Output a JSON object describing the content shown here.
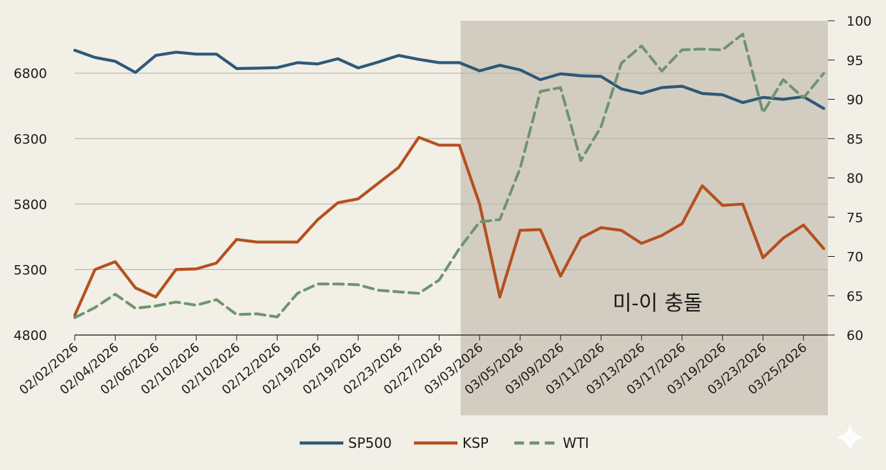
{
  "chart_data": {
    "type": "line",
    "title": "",
    "xlabel": "",
    "ylabel_left": "",
    "ylabel_right": "",
    "left_axis": {
      "min": 4800,
      "max": 7200,
      "ticks": [
        4800,
        5300,
        5800,
        6300,
        6800
      ]
    },
    "right_axis": {
      "min": 60,
      "max": 100,
      "ticks": [
        60,
        65,
        70,
        75,
        80,
        85,
        90,
        95,
        100
      ]
    },
    "x_tick_labels": [
      "02/02/2026",
      "02/04/2026",
      "02/06/2026",
      "02/10/2026",
      "02/10/2026",
      "02/12/2026",
      "02/19/2026",
      "02/19/2026",
      "02/23/2026",
      "02/27/2026",
      "03/03/2026",
      "03/05/2026",
      "03/09/2026",
      "03/11/2026",
      "03/13/2026",
      "03/17/2026",
      "03/19/2026",
      "03/23/2026",
      "03/25/2026"
    ],
    "points": 38,
    "shaded_region": {
      "from_index": 19,
      "to_index": 37,
      "label": "미-이 충돌"
    },
    "legend": [
      "SP500",
      "KSP",
      "WTI"
    ],
    "legend_position": "bottom-center",
    "series": [
      {
        "name": "SP500",
        "axis": "left",
        "color": "#2e5878",
        "style": "solid",
        "values": [
          6975,
          6920,
          6890,
          6805,
          6935,
          6960,
          6945,
          6945,
          6835,
          6838,
          6842,
          6880,
          6870,
          6910,
          6840,
          6885,
          6935,
          6905,
          6880,
          6880,
          6818,
          6860,
          6825,
          6750,
          6795,
          6780,
          6775,
          6680,
          6645,
          6690,
          6700,
          6645,
          6635,
          6575,
          6615,
          6600,
          6620,
          6530
        ]
      },
      {
        "name": "KSP",
        "axis": "left",
        "color": "#b5501f",
        "style": "solid",
        "values": [
          4950,
          5300,
          5360,
          5160,
          5090,
          5300,
          5305,
          5350,
          5530,
          5510,
          5510,
          5510,
          5680,
          5810,
          5840,
          5960,
          6080,
          6310,
          6250,
          6250,
          5800,
          5090,
          5600,
          5605,
          5250,
          5540,
          5620,
          5600,
          5500,
          5560,
          5650,
          5940,
          5790,
          5800,
          5390,
          5540,
          5640,
          5460
        ]
      },
      {
        "name": "WTI",
        "axis": "right",
        "color": "#6e9470",
        "style": "dashed",
        "values": [
          62.2,
          63.5,
          65.2,
          63.4,
          63.7,
          64.2,
          63.8,
          64.5,
          62.6,
          62.7,
          62.3,
          65.3,
          66.5,
          66.5,
          66.4,
          65.7,
          65.5,
          65.3,
          67.0,
          71.0,
          74.4,
          74.7,
          81.2,
          91.0,
          91.5,
          82.2,
          86.5,
          94.6,
          96.8,
          93.6,
          96.3,
          96.4,
          96.3,
          98.3,
          88.3,
          92.5,
          90.2,
          93.3
        ]
      }
    ]
  }
}
